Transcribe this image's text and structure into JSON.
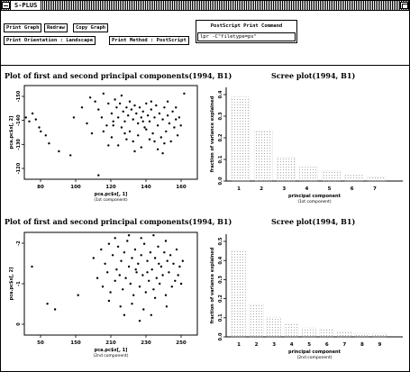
{
  "window": {
    "title": "S-PLUS"
  },
  "toolbar": {
    "print_graph": "Print Graph",
    "redraw": "Redraw",
    "copy_graph": "Copy Graph",
    "print_orientation": "Print Orientation : Landscape",
    "print_method": "Print Method : PostScript",
    "postscript_label": "PostScript Print Command",
    "postscript_command": "lpr -C\"filetype=ps\""
  },
  "plots": {
    "top_left": {
      "title": "Plot of first and second principal components(1994, B1)",
      "ylabel": "pca.pc$x[, 2]",
      "xlabel": "pca.pc$x[, 1]",
      "xlabel_sub": "(1st component)",
      "xticks": [
        "80",
        "100",
        "120",
        "140",
        "160"
      ],
      "yticks": [
        "-120",
        "-130",
        "-140",
        "-150"
      ]
    },
    "top_right": {
      "title": "Scree plot(1994, B1)",
      "ylabel": "fraction of variance explained",
      "xlabel": "principal component",
      "xlabel_sub": "(1st component)",
      "xticks": [
        "1",
        "2",
        "3",
        "4",
        "5",
        "6",
        "7"
      ],
      "yticks": [
        "0.0",
        "0.1",
        "0.2",
        "0.3",
        "0.4"
      ]
    },
    "bottom_left": {
      "title": "Plot of first and second principal components(1994, B1)",
      "ylabel": "pca.pc$x[, 2]",
      "xlabel": "pca.pc$x[, 1]",
      "xlabel_sub": "(2nd component)",
      "xticks": [
        "50",
        "150",
        "210",
        "230",
        "250"
      ],
      "yticks": [
        "0",
        "-1",
        "-2"
      ]
    },
    "bottom_right": {
      "title": "Scree plot(1994, B1)",
      "ylabel": "fraction of variance explained",
      "xlabel": "principal component",
      "xlabel_sub": "(2nd component)",
      "xticks": [
        "1",
        "2",
        "3",
        "4",
        "5",
        "6",
        "7",
        "8",
        "9"
      ],
      "yticks": [
        "0.0",
        "0.1",
        "0.2",
        "0.3",
        "0.4",
        "0.5"
      ]
    }
  },
  "chart_data": [
    {
      "type": "scatter",
      "title": "Plot of first and second principal components(1994, B1)",
      "xlabel": "pca.pc$x[, 1]",
      "ylabel": "pca.pc$x[, 2]",
      "xlim": [
        65,
        170
      ],
      "ylim": [
        -157,
        -110
      ],
      "points": [
        [
          66,
          -126
        ],
        [
          68,
          -128
        ],
        [
          70,
          -124
        ],
        [
          72,
          -127
        ],
        [
          74,
          -131
        ],
        [
          75,
          -133
        ],
        [
          78,
          -135
        ],
        [
          80,
          -139
        ],
        [
          86,
          -143
        ],
        [
          93,
          -145
        ],
        [
          95,
          -126
        ],
        [
          100,
          -121
        ],
        [
          103,
          -129
        ],
        [
          105,
          -116
        ],
        [
          106,
          -134
        ],
        [
          108,
          -118
        ],
        [
          110,
          -122
        ],
        [
          112,
          -126
        ],
        [
          113,
          -114
        ],
        [
          115,
          -130
        ],
        [
          116,
          -119
        ],
        [
          118,
          -124
        ],
        [
          119,
          -128
        ],
        [
          120,
          -117
        ],
        [
          121,
          -121
        ],
        [
          122,
          -126
        ],
        [
          123,
          -119
        ],
        [
          124,
          -115
        ],
        [
          125,
          -123
        ],
        [
          126,
          -128
        ],
        [
          127,
          -121
        ],
        [
          128,
          -125
        ],
        [
          129,
          -118
        ],
        [
          130,
          -122
        ],
        [
          131,
          -127
        ],
        [
          132,
          -120
        ],
        [
          133,
          -124
        ],
        [
          134,
          -129
        ],
        [
          135,
          -121
        ],
        [
          136,
          -126
        ],
        [
          137,
          -123
        ],
        [
          138,
          -131
        ],
        [
          139,
          -119
        ],
        [
          140,
          -125
        ],
        [
          141,
          -128
        ],
        [
          142,
          -122
        ],
        [
          143,
          -134
        ],
        [
          144,
          -126
        ],
        [
          145,
          -120
        ],
        [
          146,
          -130
        ],
        [
          147,
          -124
        ],
        [
          148,
          -136
        ],
        [
          149,
          -127
        ],
        [
          150,
          -121
        ],
        [
          151,
          -133
        ],
        [
          152,
          -125
        ],
        [
          153,
          -129
        ],
        [
          154,
          -138
        ],
        [
          155,
          -123
        ],
        [
          156,
          -131
        ],
        [
          157,
          -127
        ],
        [
          158,
          -135
        ],
        [
          159,
          -126
        ],
        [
          160,
          -130
        ],
        [
          118,
          -136
        ],
        [
          122,
          -140
        ],
        [
          126,
          -134
        ],
        [
          131,
          -138
        ],
        [
          136,
          -141
        ],
        [
          141,
          -137
        ],
        [
          146,
          -142
        ],
        [
          150,
          -139
        ],
        [
          124,
          -131
        ],
        [
          129,
          -133
        ],
        [
          134,
          -135
        ],
        [
          139,
          -132
        ],
        [
          144,
          -138
        ],
        [
          149,
          -144
        ],
        [
          113,
          -133
        ],
        [
          116,
          -140
        ],
        [
          110,
          -155
        ],
        [
          119,
          -130
        ],
        [
          127,
          -137
        ],
        [
          132,
          -143
        ],
        [
          137,
          -128
        ],
        [
          142,
          -118
        ],
        [
          152,
          -118
        ],
        [
          157,
          -121
        ],
        [
          162,
          -114
        ]
      ]
    },
    {
      "type": "bar",
      "title": "Scree plot(1994, B1)",
      "xlabel": "principal component",
      "ylabel": "fraction of variance explained",
      "categories": [
        "1",
        "2",
        "3",
        "4",
        "5",
        "6",
        "7"
      ],
      "values": [
        0.42,
        0.25,
        0.12,
        0.07,
        0.05,
        0.03,
        0.02
      ],
      "ylim": [
        0,
        0.45
      ]
    },
    {
      "type": "scatter",
      "title": "Plot of first and second principal components(1994, B1)",
      "xlabel": "pca.pc$x[, 1]",
      "ylabel": "pca.pc$x[, 2]",
      "xlim": [
        40,
        265
      ],
      "ylim": [
        -2.3,
        1.3
      ],
      "points": [
        [
          50,
          0.1
        ],
        [
          70,
          -1.2
        ],
        [
          80,
          -1.4
        ],
        [
          110,
          -0.9
        ],
        [
          130,
          0.4
        ],
        [
          135,
          -0.3
        ],
        [
          140,
          0.7
        ],
        [
          142,
          -0.6
        ],
        [
          145,
          0.2
        ],
        [
          148,
          -0.1
        ],
        [
          150,
          0.9
        ],
        [
          152,
          -0.8
        ],
        [
          155,
          0.5
        ],
        [
          158,
          -0.4
        ],
        [
          160,
          0.0
        ],
        [
          162,
          0.8
        ],
        [
          164,
          -0.2
        ],
        [
          166,
          0.3
        ],
        [
          168,
          -0.7
        ],
        [
          170,
          0.6
        ],
        [
          172,
          -0.3
        ],
        [
          174,
          1.0
        ],
        [
          176,
          0.1
        ],
        [
          178,
          -0.5
        ],
        [
          180,
          0.4
        ],
        [
          182,
          -0.9
        ],
        [
          184,
          0.7
        ],
        [
          186,
          -0.1
        ],
        [
          188,
          0.2
        ],
        [
          190,
          -0.6
        ],
        [
          192,
          0.5
        ],
        [
          194,
          -0.2
        ],
        [
          196,
          0.9
        ],
        [
          198,
          -0.8
        ],
        [
          200,
          0.3
        ],
        [
          202,
          -0.4
        ],
        [
          204,
          0.6
        ],
        [
          206,
          0.0
        ],
        [
          208,
          -0.7
        ],
        [
          210,
          0.4
        ],
        [
          212,
          -0.3
        ],
        [
          214,
          0.8
        ],
        [
          216,
          -0.5
        ],
        [
          218,
          0.1
        ],
        [
          220,
          -0.2
        ],
        [
          222,
          0.6
        ],
        [
          224,
          -0.9
        ],
        [
          226,
          0.3
        ],
        [
          228,
          -0.1
        ],
        [
          230,
          0.5
        ],
        [
          232,
          -0.6
        ],
        [
          234,
          0.2
        ],
        [
          236,
          -0.4
        ],
        [
          238,
          0.7
        ],
        [
          240,
          -0.2
        ],
        [
          242,
          0.1
        ],
        [
          244,
          -0.5
        ],
        [
          246,
          0.3
        ],
        [
          150,
          -1.1
        ],
        [
          165,
          -1.3
        ],
        [
          180,
          -1.2
        ],
        [
          195,
          -1.4
        ],
        [
          210,
          -1.0
        ],
        [
          225,
          -1.3
        ],
        [
          158,
          1.1
        ],
        [
          176,
          1.2
        ],
        [
          192,
          1.1
        ],
        [
          208,
          1.2
        ],
        [
          224,
          1.0
        ],
        [
          170,
          -1.6
        ],
        [
          190,
          -1.8
        ],
        [
          205,
          -1.6
        ],
        [
          185,
          0.0
        ],
        [
          200,
          -0.1
        ],
        [
          215,
          0.2
        ]
      ]
    },
    {
      "type": "bar",
      "title": "Scree plot(1994, B1)",
      "xlabel": "principal component",
      "ylabel": "fraction of variance explained",
      "categories": [
        "1",
        "2",
        "3",
        "4",
        "5",
        "6",
        "7",
        "8",
        "9"
      ],
      "values": [
        0.48,
        0.18,
        0.11,
        0.07,
        0.05,
        0.04,
        0.03,
        0.02,
        0.02
      ],
      "ylim": [
        0,
        0.55
      ]
    }
  ]
}
